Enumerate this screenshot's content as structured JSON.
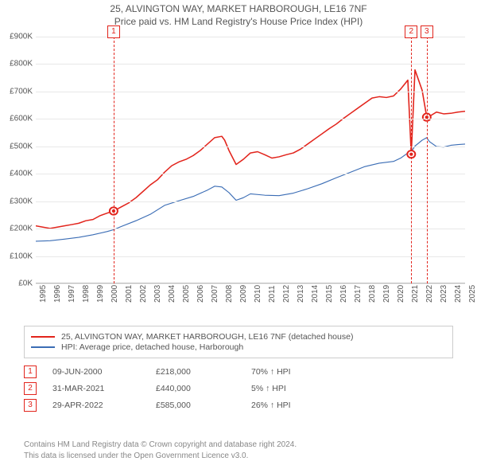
{
  "title": "25, ALVINGTON WAY, MARKET HARBOROUGH, LE16 7NF",
  "subtitle": "Price paid vs. HM Land Registry's House Price Index (HPI)",
  "chart": {
    "type": "line",
    "background_color": "#ffffff",
    "grid_color": "#e8e8e8",
    "axis_color": "#bbbbbb",
    "text_color": "#555555",
    "ylim": [
      0,
      900
    ],
    "ytick_step": 100,
    "ytick_prefix": "£",
    "ytick_suffix": "K",
    "xlim": [
      1995,
      2025
    ],
    "xticks": [
      1995,
      1996,
      1997,
      1998,
      1999,
      2000,
      2001,
      2002,
      2003,
      2004,
      2005,
      2006,
      2007,
      2008,
      2009,
      2010,
      2011,
      2012,
      2013,
      2014,
      2015,
      2016,
      2017,
      2018,
      2019,
      2020,
      2021,
      2022,
      2023,
      2024,
      2025
    ],
    "label_fontsize": 10,
    "line_width_primary": 1.6,
    "line_width_secondary": 1.2,
    "series": [
      {
        "id": "property_price",
        "label": "25, ALVINGTON WAY, MARKET HARBOROUGH, LE16 7NF (detached house)",
        "color": "#e2241c",
        "points": [
          [
            1995.0,
            160
          ],
          [
            1995.5,
            155
          ],
          [
            1996.0,
            150
          ],
          [
            1996.5,
            155
          ],
          [
            1997.0,
            160
          ],
          [
            1997.5,
            165
          ],
          [
            1998.0,
            170
          ],
          [
            1998.5,
            180
          ],
          [
            1999.0,
            185
          ],
          [
            1999.5,
            200
          ],
          [
            2000.0,
            210
          ],
          [
            2000.44,
            218
          ],
          [
            2001.0,
            235
          ],
          [
            2001.5,
            250
          ],
          [
            2002.0,
            270
          ],
          [
            2002.5,
            295
          ],
          [
            2003.0,
            320
          ],
          [
            2003.5,
            340
          ],
          [
            2004.0,
            370
          ],
          [
            2004.5,
            395
          ],
          [
            2005.0,
            410
          ],
          [
            2005.5,
            420
          ],
          [
            2006.0,
            435
          ],
          [
            2006.5,
            455
          ],
          [
            2007.0,
            480
          ],
          [
            2007.5,
            505
          ],
          [
            2008.0,
            510
          ],
          [
            2008.2,
            495
          ],
          [
            2008.5,
            455
          ],
          [
            2009.0,
            400
          ],
          [
            2009.5,
            420
          ],
          [
            2010.0,
            445
          ],
          [
            2010.5,
            450
          ],
          [
            2011.0,
            438
          ],
          [
            2011.5,
            425
          ],
          [
            2012.0,
            430
          ],
          [
            2012.5,
            438
          ],
          [
            2013.0,
            445
          ],
          [
            2013.5,
            460
          ],
          [
            2014.0,
            480
          ],
          [
            2014.5,
            500
          ],
          [
            2015.0,
            520
          ],
          [
            2015.5,
            540
          ],
          [
            2016.0,
            558
          ],
          [
            2016.5,
            580
          ],
          [
            2017.0,
            600
          ],
          [
            2017.5,
            620
          ],
          [
            2018.0,
            640
          ],
          [
            2018.5,
            660
          ],
          [
            2019.0,
            665
          ],
          [
            2019.5,
            662
          ],
          [
            2020.0,
            668
          ],
          [
            2020.5,
            695
          ],
          [
            2021.0,
            730
          ],
          [
            2021.24,
            440
          ],
          [
            2021.5,
            770
          ],
          [
            2022.0,
            690
          ],
          [
            2022.32,
            585
          ],
          [
            2022.5,
            588
          ],
          [
            2023.0,
            605
          ],
          [
            2023.5,
            598
          ],
          [
            2024.0,
            600
          ],
          [
            2024.5,
            605
          ],
          [
            2025.0,
            608
          ]
        ]
      },
      {
        "id": "hpi",
        "label": "HPI: Average price, detached house, Harborough",
        "color": "#3b6db5",
        "points": [
          [
            1995.0,
            100
          ],
          [
            1996.0,
            102
          ],
          [
            1997.0,
            108
          ],
          [
            1998.0,
            115
          ],
          [
            1999.0,
            125
          ],
          [
            2000.0,
            138
          ],
          [
            2000.44,
            145
          ],
          [
            2001.0,
            158
          ],
          [
            2002.0,
            180
          ],
          [
            2003.0,
            205
          ],
          [
            2004.0,
            240
          ],
          [
            2005.0,
            258
          ],
          [
            2006.0,
            275
          ],
          [
            2007.0,
            300
          ],
          [
            2007.5,
            315
          ],
          [
            2008.0,
            312
          ],
          [
            2008.5,
            290
          ],
          [
            2009.0,
            260
          ],
          [
            2009.5,
            270
          ],
          [
            2010.0,
            285
          ],
          [
            2011.0,
            280
          ],
          [
            2012.0,
            278
          ],
          [
            2013.0,
            288
          ],
          [
            2014.0,
            305
          ],
          [
            2015.0,
            325
          ],
          [
            2016.0,
            348
          ],
          [
            2017.0,
            370
          ],
          [
            2018.0,
            392
          ],
          [
            2019.0,
            405
          ],
          [
            2020.0,
            412
          ],
          [
            2020.5,
            425
          ],
          [
            2021.0,
            445
          ],
          [
            2021.24,
            450
          ],
          [
            2021.5,
            472
          ],
          [
            2022.0,
            495
          ],
          [
            2022.32,
            505
          ],
          [
            2022.5,
            490
          ],
          [
            2023.0,
            470
          ],
          [
            2023.5,
            468
          ],
          [
            2024.0,
            475
          ],
          [
            2024.5,
            478
          ],
          [
            2025.0,
            480
          ]
        ]
      }
    ],
    "event_markers": [
      {
        "n": "1",
        "x": 2000.44,
        "y": 218,
        "color": "#e2241c"
      },
      {
        "n": "2",
        "x": 2021.24,
        "y": 440,
        "color": "#e2241c"
      },
      {
        "n": "3",
        "x": 2022.32,
        "y": 585,
        "color": "#e2241c"
      }
    ]
  },
  "legend": {
    "rows": [
      {
        "color": "#e2241c",
        "label": "25, ALVINGTON WAY, MARKET HARBOROUGH, LE16 7NF (detached house)"
      },
      {
        "color": "#3b6db5",
        "label": "HPI: Average price, detached house, Harborough"
      }
    ]
  },
  "events_table": {
    "rows": [
      {
        "n": "1",
        "color": "#e2241c",
        "date": "09-JUN-2000",
        "price": "£218,000",
        "diff": "70% ↑ HPI"
      },
      {
        "n": "2",
        "color": "#e2241c",
        "date": "31-MAR-2021",
        "price": "£440,000",
        "diff": "5% ↑ HPI"
      },
      {
        "n": "3",
        "color": "#e2241c",
        "date": "29-APR-2022",
        "price": "£585,000",
        "diff": "26% ↑ HPI"
      }
    ]
  },
  "footer": {
    "line1": "Contains HM Land Registry data © Crown copyright and database right 2024.",
    "line2": "This data is licensed under the Open Government Licence v3.0."
  }
}
